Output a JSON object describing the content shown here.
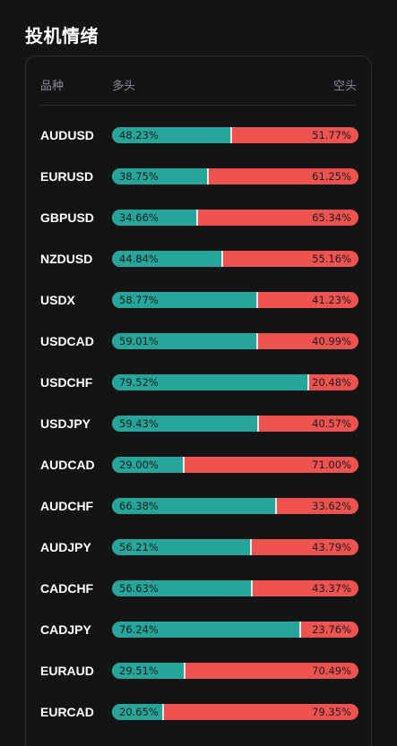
{
  "title": "投机情绪",
  "table": {
    "col_symbol": "品种",
    "col_long": "多头",
    "col_short": "空头"
  },
  "colors": {
    "long": "#26a69a",
    "short": "#ef5350",
    "background": "#131416"
  },
  "rows": [
    {
      "symbol": "AUDUSD",
      "long": "48.23%",
      "short": "51.77%",
      "long_value": 48.23
    },
    {
      "symbol": "EURUSD",
      "long": "38.75%",
      "short": "61.25%",
      "long_value": 38.75
    },
    {
      "symbol": "GBPUSD",
      "long": "34.66%",
      "short": "65.34%",
      "long_value": 34.66
    },
    {
      "symbol": "NZDUSD",
      "long": "44.84%",
      "short": "55.16%",
      "long_value": 44.84
    },
    {
      "symbol": "USDX",
      "long": "58.77%",
      "short": "41.23%",
      "long_value": 58.77
    },
    {
      "symbol": "USDCAD",
      "long": "59.01%",
      "short": "40.99%",
      "long_value": 59.01
    },
    {
      "symbol": "USDCHF",
      "long": "79.52%",
      "short": "20.48%",
      "long_value": 79.52
    },
    {
      "symbol": "USDJPY",
      "long": "59.43%",
      "short": "40.57%",
      "long_value": 59.43
    },
    {
      "symbol": "AUDCAD",
      "long": "29.00%",
      "short": "71.00%",
      "long_value": 29.0
    },
    {
      "symbol": "AUDCHF",
      "long": "66.38%",
      "short": "33.62%",
      "long_value": 66.38
    },
    {
      "symbol": "AUDJPY",
      "long": "56.21%",
      "short": "43.79%",
      "long_value": 56.21
    },
    {
      "symbol": "CADCHF",
      "long": "56.63%",
      "short": "43.37%",
      "long_value": 56.63
    },
    {
      "symbol": "CADJPY",
      "long": "76.24%",
      "short": "23.76%",
      "long_value": 76.24
    },
    {
      "symbol": "EURAUD",
      "long": "29.51%",
      "short": "70.49%",
      "long_value": 29.51
    },
    {
      "symbol": "EURCAD",
      "long": "20.65%",
      "short": "79.35%",
      "long_value": 20.65
    }
  ]
}
